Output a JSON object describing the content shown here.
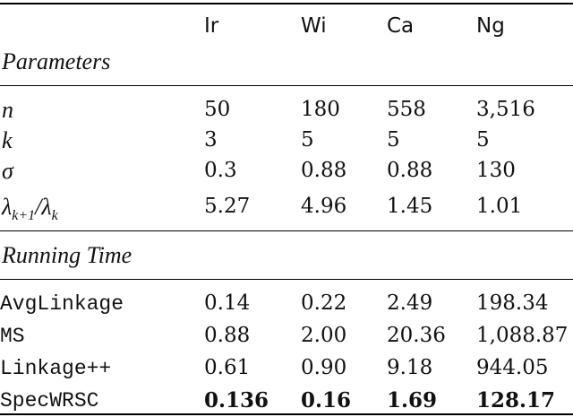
{
  "table": {
    "columns": [
      "Ir",
      "Wi",
      "Ca",
      "Ng"
    ],
    "sections": [
      {
        "title": "Parameters",
        "rows": [
          {
            "label_parts": [
              {
                "text": "n"
              }
            ],
            "cells": [
              "50",
              "180",
              "558",
              "3,516"
            ]
          },
          {
            "label_parts": [
              {
                "text": "k"
              }
            ],
            "cells": [
              "3",
              "5",
              "5",
              "5"
            ]
          },
          {
            "label_parts": [
              {
                "text": "σ"
              }
            ],
            "cells": [
              "0.3",
              "0.88",
              "0.88",
              "130"
            ]
          },
          {
            "label_parts": [
              {
                "text": "λ"
              },
              {
                "sub": "k+1"
              },
              {
                "text": "/λ"
              },
              {
                "sub": "k"
              }
            ],
            "cells": [
              "5.27",
              "4.96",
              "1.45",
              "1.01"
            ]
          }
        ]
      },
      {
        "title": "Running Time",
        "rows": [
          {
            "method": "AvgLinkage",
            "cells": [
              "0.14",
              "0.22",
              "2.49",
              "198.34"
            ]
          },
          {
            "method": "MS",
            "cells": [
              "0.88",
              "2.00",
              "20.36",
              "1,088.87"
            ]
          },
          {
            "method": "Linkage++",
            "cells": [
              "0.61",
              "0.90",
              "9.18",
              "944.05"
            ]
          },
          {
            "method": "SpecWRSC",
            "cells": [
              "0.136",
              "0.16",
              "1.69",
              "128.17"
            ],
            "bold": true
          }
        ]
      }
    ]
  }
}
